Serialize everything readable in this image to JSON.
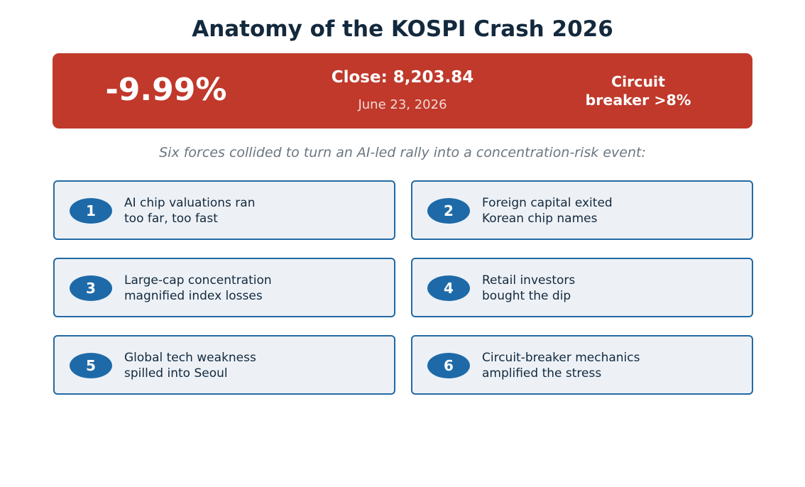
{
  "title": "Anatomy of the KOSPI Crash 2026",
  "banner": {
    "change": "-9.99%",
    "close": "Close: 8,203.84",
    "date": "June 23, 2026",
    "breaker_line1": "Circuit",
    "breaker_line2": "breaker >8%"
  },
  "subtitle": "Six forces collided to turn an AI-led rally into a concentration-risk event:",
  "factors": [
    {
      "number": "1",
      "line1": "AI chip valuations ran",
      "line2": "too far, too fast"
    },
    {
      "number": "2",
      "line1": "Foreign capital exited",
      "line2": "Korean chip names"
    },
    {
      "number": "3",
      "line1": "Large-cap concentration",
      "line2": "magnified index losses"
    },
    {
      "number": "4",
      "line1": "Retail investors",
      "line2": "bought the dip"
    },
    {
      "number": "5",
      "line1": "Global tech weakness",
      "line2": "spilled into Seoul"
    },
    {
      "number": "6",
      "line1": "Circuit-breaker mechanics",
      "line2": "amplified the stress"
    }
  ],
  "colors": {
    "banner": "#c0392b",
    "accent": "#1e6aa8",
    "card_bg": "#edf1f6",
    "title": "#13293d"
  }
}
